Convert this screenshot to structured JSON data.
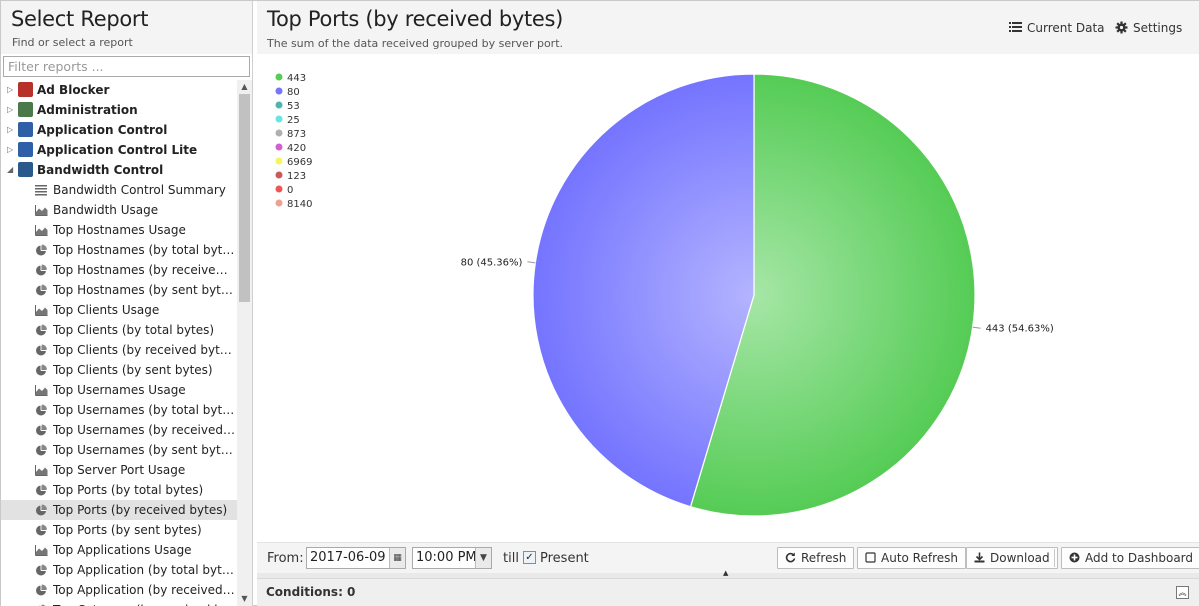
{
  "left_panel": {
    "title": "Select Report",
    "subtitle": "Find or select a report",
    "filter_placeholder": "Filter reports ..."
  },
  "tree": [
    {
      "type": "category",
      "label": "Ad Blocker",
      "icon": "ad-blocker-icon",
      "expander": "▷",
      "color": "#b5312a"
    },
    {
      "type": "category",
      "label": "Administration",
      "icon": "administration-icon",
      "expander": "▷",
      "color": "#4a7a4a"
    },
    {
      "type": "category",
      "label": "Application Control",
      "icon": "application-control-icon",
      "expander": "▷",
      "color": "#2f5fa6"
    },
    {
      "type": "category",
      "label": "Application Control Lite",
      "icon": "application-control-lite-icon",
      "expander": "▷",
      "color": "#2f5fa6"
    },
    {
      "type": "category",
      "label": "Bandwidth Control",
      "icon": "bandwidth-control-icon",
      "expander": "◢",
      "color": "#2a5a8c"
    },
    {
      "type": "report",
      "label": "Bandwidth Control Summary",
      "icon": "text-report-icon"
    },
    {
      "type": "report",
      "label": "Bandwidth Usage",
      "icon": "area-chart-icon"
    },
    {
      "type": "report",
      "label": "Top Hostnames Usage",
      "icon": "area-chart-icon"
    },
    {
      "type": "report",
      "label": "Top Hostnames (by total bytes)",
      "icon": "pie-chart-icon"
    },
    {
      "type": "report",
      "label": "Top Hostnames (by received byte...",
      "icon": "pie-chart-icon"
    },
    {
      "type": "report",
      "label": "Top Hostnames (by sent bytes)",
      "icon": "pie-chart-icon"
    },
    {
      "type": "report",
      "label": "Top Clients Usage",
      "icon": "area-chart-icon"
    },
    {
      "type": "report",
      "label": "Top Clients (by total bytes)",
      "icon": "pie-chart-icon"
    },
    {
      "type": "report",
      "label": "Top Clients (by received bytes)",
      "icon": "pie-chart-icon"
    },
    {
      "type": "report",
      "label": "Top Clients (by sent bytes)",
      "icon": "pie-chart-icon"
    },
    {
      "type": "report",
      "label": "Top Usernames Usage",
      "icon": "area-chart-icon"
    },
    {
      "type": "report",
      "label": "Top Usernames (by total bytes)",
      "icon": "pie-chart-icon"
    },
    {
      "type": "report",
      "label": "Top Usernames (by received bytes)",
      "icon": "pie-chart-icon"
    },
    {
      "type": "report",
      "label": "Top Usernames (by sent bytes)",
      "icon": "pie-chart-icon"
    },
    {
      "type": "report",
      "label": "Top Server Port Usage",
      "icon": "area-chart-icon"
    },
    {
      "type": "report",
      "label": "Top Ports (by total bytes)",
      "icon": "pie-chart-icon"
    },
    {
      "type": "report",
      "label": "Top Ports (by received bytes)",
      "icon": "pie-chart-icon",
      "selected": true
    },
    {
      "type": "report",
      "label": "Top Ports (by sent bytes)",
      "icon": "pie-chart-icon"
    },
    {
      "type": "report",
      "label": "Top Applications Usage",
      "icon": "area-chart-icon"
    },
    {
      "type": "report",
      "label": "Top Application (by total bytes)",
      "icon": "pie-chart-icon"
    },
    {
      "type": "report",
      "label": "Top Application (by received bytes)",
      "icon": "pie-chart-icon"
    },
    {
      "type": "report",
      "label": "Top Category (by received bytes)",
      "icon": "pie-chart-icon"
    }
  ],
  "header": {
    "title": "Top Ports (by received bytes)",
    "description": "The sum of the data received grouped by server port.",
    "current_data_label": "Current Data",
    "settings_label": "Settings"
  },
  "chart_data": {
    "type": "pie",
    "title": "",
    "legend_position": "top-left",
    "legend": [
      {
        "name": "443",
        "color": "#55cc55"
      },
      {
        "name": "80",
        "color": "#7474ff"
      },
      {
        "name": "53",
        "color": "#4db6ac"
      },
      {
        "name": "25",
        "color": "#66e6e6"
      },
      {
        "name": "873",
        "color": "#b0b0b0"
      },
      {
        "name": "420",
        "color": "#d060d0"
      },
      {
        "name": "6969",
        "color": "#f5f560"
      },
      {
        "name": "123",
        "color": "#c95a5a"
      },
      {
        "name": "0",
        "color": "#ee5555"
      },
      {
        "name": "8140",
        "color": "#f0a090"
      }
    ],
    "slices": [
      {
        "name": "443",
        "value": 54.63,
        "label": "443 (54.63%)",
        "color": "#55cc55",
        "center_color": "#a6e6a6"
      },
      {
        "name": "80",
        "value": 45.36,
        "label": "80 (45.36%)",
        "color": "#7474ff",
        "center_color": "#b4b4ff"
      }
    ]
  },
  "bottom_bar": {
    "from_label": "From:",
    "date_value": "2017-06-09",
    "time_value": "10:00 PM",
    "till_label": "till",
    "present_label": "Present",
    "present_checked": "✓",
    "refresh_label": "Refresh",
    "auto_refresh_label": "Auto Refresh",
    "download_label": "Download",
    "add_dashboard_label": "Add to Dashboard"
  },
  "conditions": {
    "label": "Conditions: 0"
  }
}
